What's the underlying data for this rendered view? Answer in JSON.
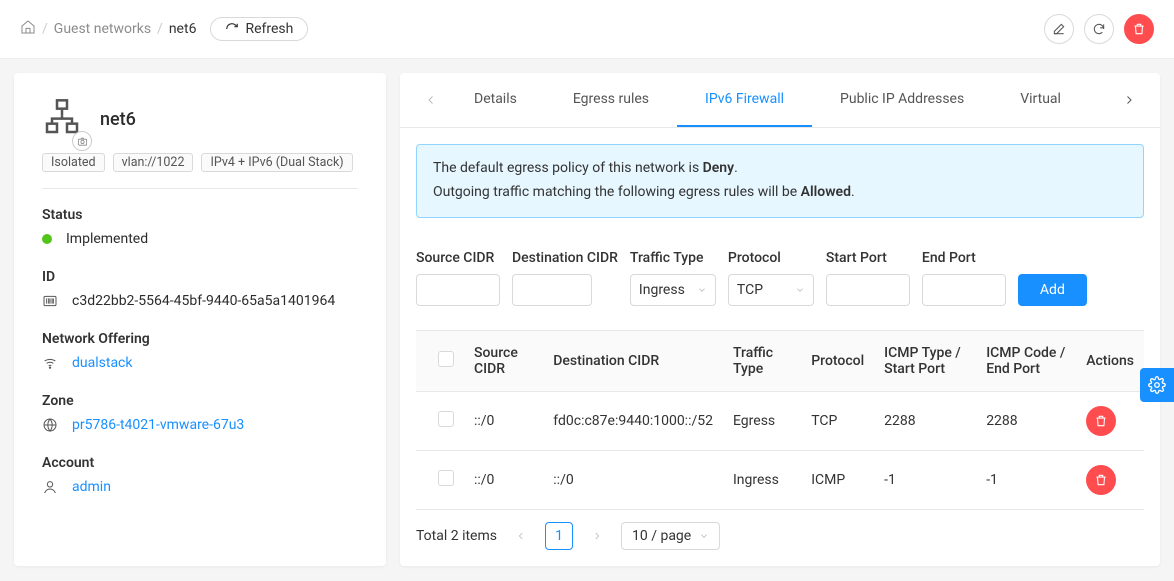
{
  "breadcrumb": {
    "items": [
      {
        "label": "Guest networks"
      },
      {
        "label": "net6"
      }
    ],
    "refresh_label": "Refresh"
  },
  "side": {
    "title": "net6",
    "tags": [
      "Isolated",
      "vlan://1022",
      "IPv4 + IPv6 (Dual Stack)"
    ],
    "status_label": "Status",
    "status_value": "Implemented",
    "id_label": "ID",
    "id_value": "c3d22bb2-5564-45bf-9440-65a5a1401964",
    "offering_label": "Network Offering",
    "offering_value": "dualstack",
    "zone_label": "Zone",
    "zone_value": "pr5786-t4021-vmware-67u3",
    "account_label": "Account",
    "account_value": "admin"
  },
  "tabs": {
    "items": [
      "Details",
      "Egress rules",
      "IPv6 Firewall",
      "Public IP Addresses",
      "Virtual Routers"
    ],
    "active_index": 2
  },
  "alert": {
    "pre1": "The default egress policy of this network is ",
    "bold1": "Deny",
    "post1": ".",
    "pre2": "Outgoing traffic matching the following egress rules will be ",
    "bold2": "Allowed",
    "post2": "."
  },
  "filters": {
    "source_label": "Source CIDR",
    "dest_label": "Destination CIDR",
    "traffic_label": "Traffic Type",
    "traffic_value": "Ingress",
    "protocol_label": "Protocol",
    "protocol_value": "TCP",
    "start_label": "Start Port",
    "end_label": "End Port",
    "add_label": "Add"
  },
  "table": {
    "headers": {
      "source": "Source CIDR",
      "dest": "Destination CIDR",
      "traffic": "Traffic Type",
      "protocol": "Protocol",
      "start": "ICMP Type / Start Port",
      "end": "ICMP Code / End Port",
      "actions": "Actions"
    },
    "rows": [
      {
        "source": "::/0",
        "dest": "fd0c:c87e:9440:1000::/52",
        "traffic": "Egress",
        "protocol": "TCP",
        "start": "2288",
        "end": "2288"
      },
      {
        "source": "::/0",
        "dest": "::/0",
        "traffic": "Ingress",
        "protocol": "ICMP",
        "start": "-1",
        "end": "-1"
      }
    ]
  },
  "pagination": {
    "total_text": "Total 2 items",
    "page": "1",
    "page_size": "10 / page"
  },
  "colors": {
    "primary": "#1890ff",
    "danger": "#ff4d4f",
    "info_bg": "#e6f7ff",
    "info_border": "#91d5ff",
    "status_green": "#52c41a",
    "body_bg": "#f5f5f5"
  }
}
